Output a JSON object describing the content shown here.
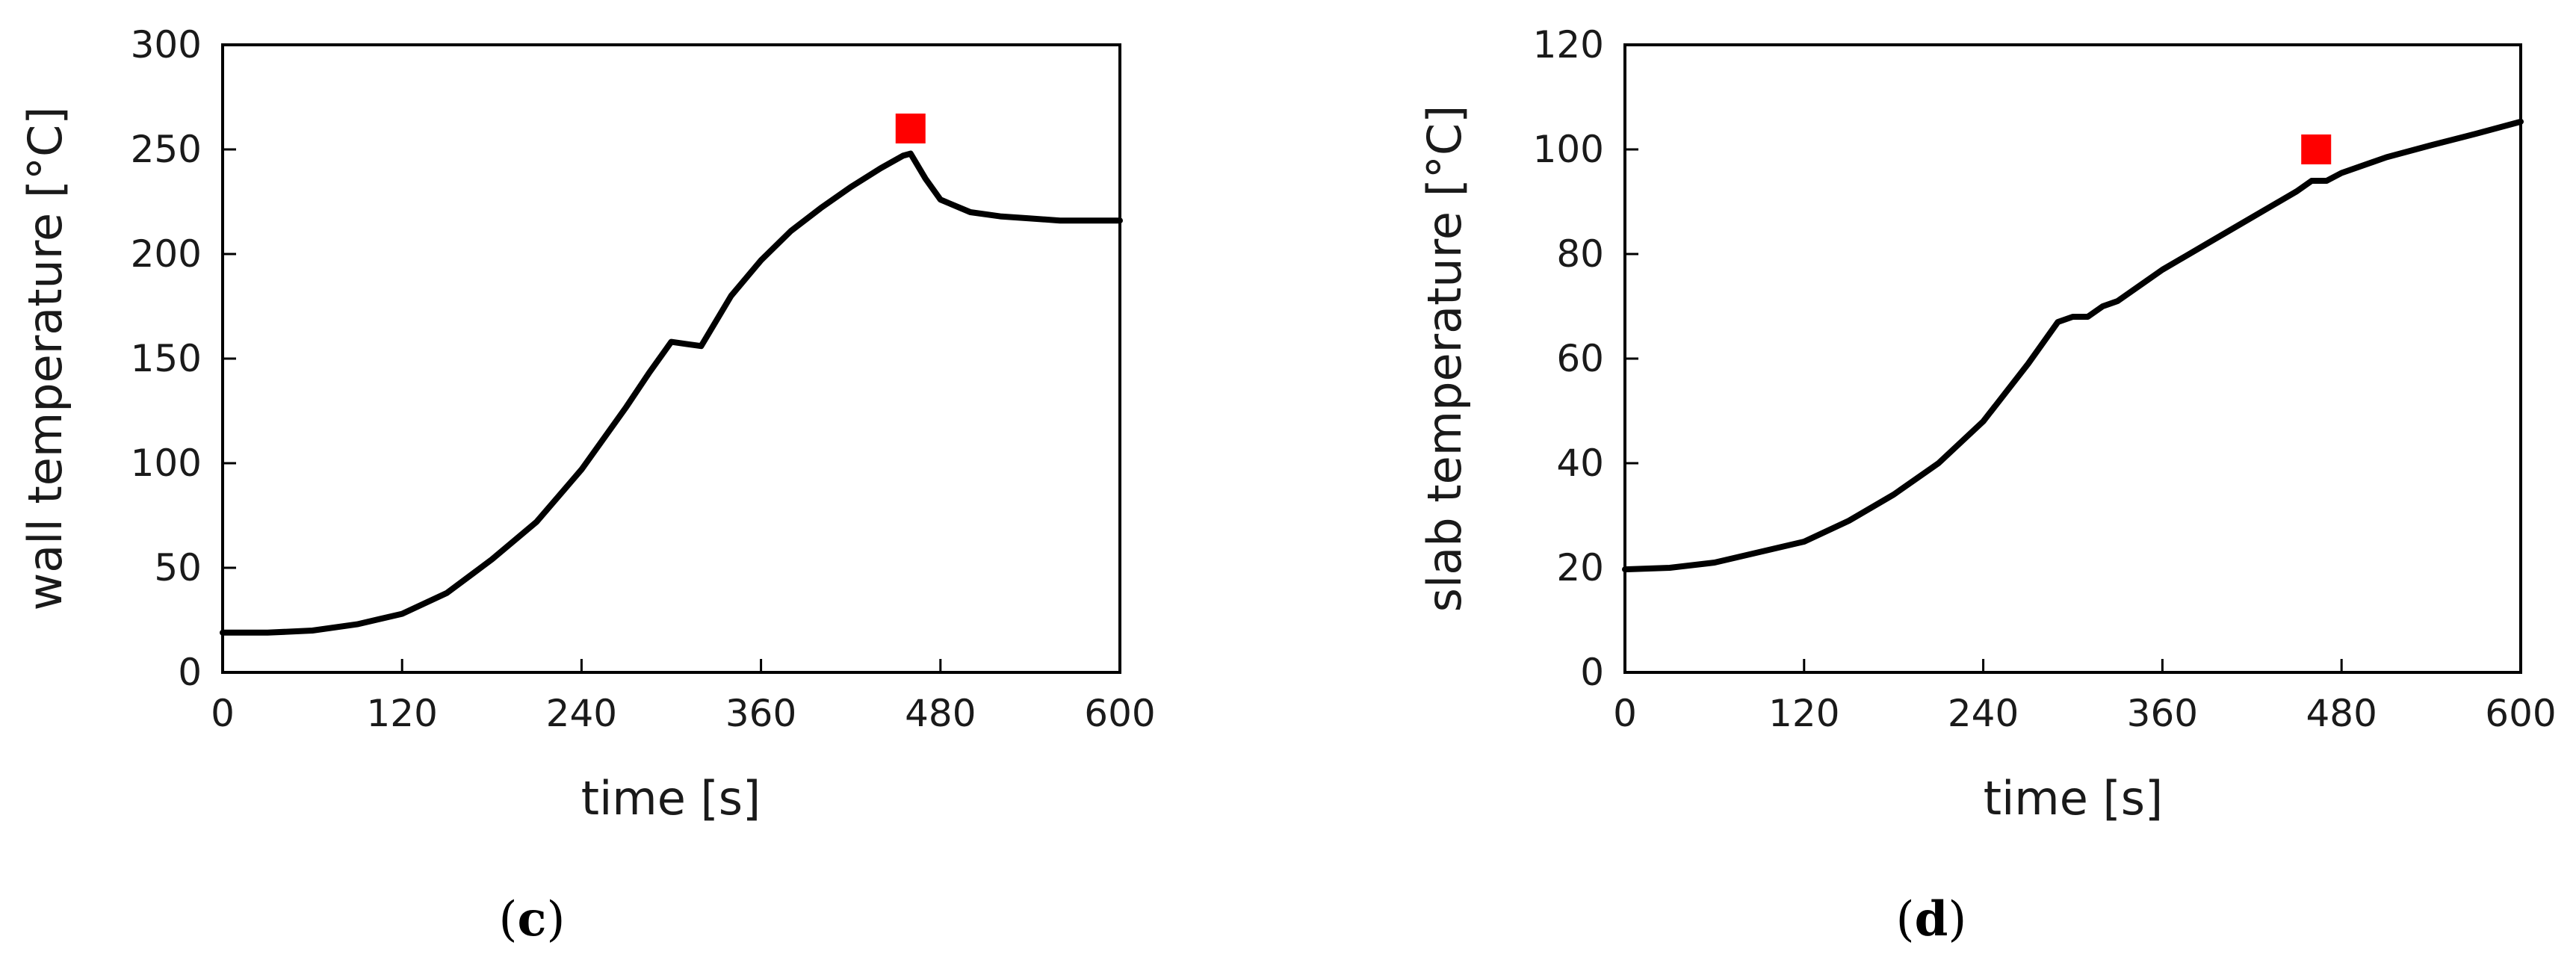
{
  "chart_data": [
    {
      "type": "line",
      "panel_label": "c",
      "xlabel": "time [s]",
      "ylabel": "wall temperature [°C]",
      "xlim": [
        0,
        600
      ],
      "ylim": [
        0,
        300
      ],
      "xticks": [
        0,
        120,
        240,
        360,
        480,
        600
      ],
      "yticks": [
        0,
        50,
        100,
        150,
        200,
        250,
        300
      ],
      "grid": false,
      "line_color": "#000000",
      "marker_color": "#ff0000",
      "series": [
        {
          "x": [
            0,
            30,
            60,
            90,
            120,
            150,
            180,
            210,
            240,
            270,
            285,
            300,
            310,
            320,
            330,
            340,
            360,
            380,
            400,
            420,
            440,
            455,
            460,
            470,
            480,
            500,
            520,
            540,
            560,
            580,
            600
          ],
          "y": [
            19,
            19,
            20,
            23,
            28,
            38,
            54,
            72,
            97,
            127,
            143,
            158,
            157,
            156,
            168,
            180,
            197,
            211,
            222,
            232,
            241,
            247,
            248,
            236,
            226,
            220,
            218,
            217,
            216,
            216,
            216
          ]
        }
      ],
      "marker": {
        "x": 460,
        "y": 260
      }
    },
    {
      "type": "line",
      "panel_label": "d",
      "xlabel": "time [s]",
      "ylabel": "slab temperature [°C]",
      "xlim": [
        0,
        600
      ],
      "ylim": [
        0,
        120
      ],
      "xticks": [
        0,
        120,
        240,
        360,
        480,
        600
      ],
      "yticks": [
        0,
        20,
        40,
        60,
        80,
        100,
        120
      ],
      "grid": false,
      "line_color": "#000000",
      "marker_color": "#ff0000",
      "series": [
        {
          "x": [
            0,
            30,
            60,
            90,
            120,
            150,
            180,
            210,
            240,
            270,
            290,
            300,
            310,
            320,
            330,
            360,
            390,
            420,
            450,
            460,
            470,
            480,
            510,
            540,
            570,
            600
          ],
          "y": [
            19.7,
            20,
            21,
            23,
            25,
            29,
            34,
            40,
            48,
            59,
            67,
            68,
            68,
            70,
            71,
            77,
            82,
            87,
            92,
            94,
            94,
            95.5,
            98.5,
            100.8,
            103,
            105.3
          ]
        }
      ],
      "marker": {
        "x": 463,
        "y": 100
      }
    }
  ]
}
